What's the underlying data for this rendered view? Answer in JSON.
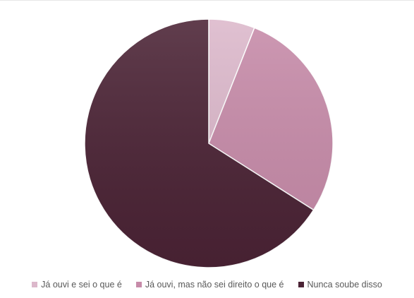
{
  "chart_data": {
    "type": "pie",
    "title": "",
    "series": [
      {
        "name": "Já ouvi e sei o que é",
        "value": 6,
        "color": "#dcb8cb"
      },
      {
        "name": "Já ouvi, mas não sei direito o que é",
        "value": 28,
        "color": "#c78ba9"
      },
      {
        "name": "Nunca soube disso",
        "value": 66,
        "color": "#4b2335"
      }
    ],
    "start_angle_deg": 0,
    "direction": "clockwise",
    "legend_position": "bottom"
  }
}
